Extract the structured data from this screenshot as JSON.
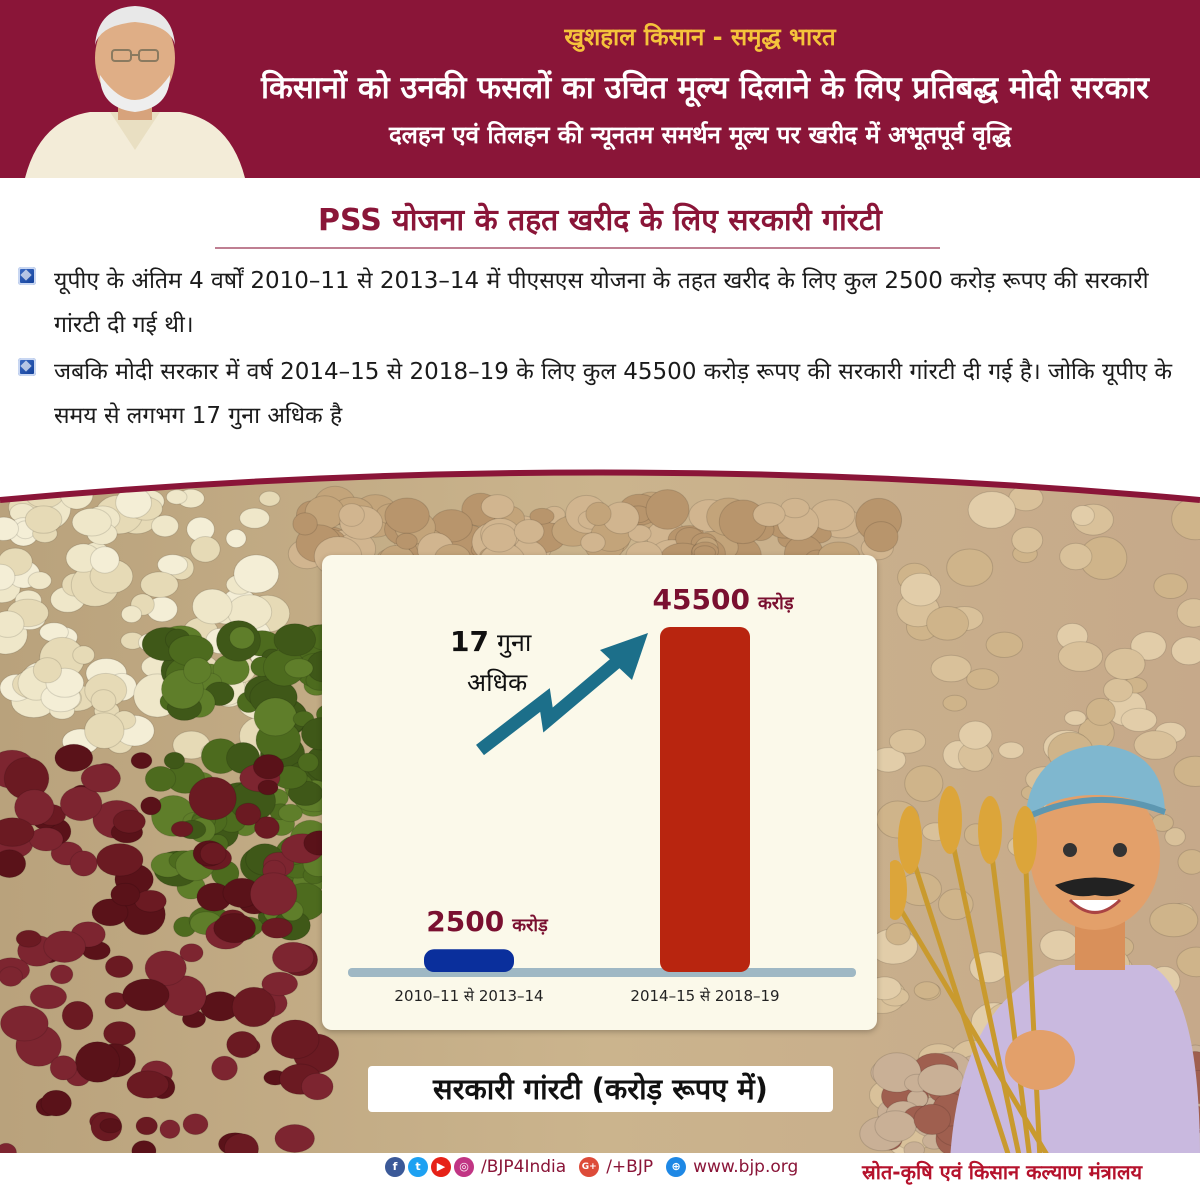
{
  "header": {
    "tagline": "खुशहाल किसान - समृद्ध भारत",
    "headline": "किसानों को उनकी फसलों का उचित मूल्य दिलाने के लिए प्रतिबद्ध मोदी सरकार",
    "subheadline": "दलहन एवं तिलहन की न्यूनतम समर्थन मूल्य पर खरीद में अभूतपूर्व वृद्धि"
  },
  "section": {
    "title": "PSS योजना के तहत खरीद के लिए सरकारी गांरटी",
    "bullets": [
      "यूपीए के अंतिम 4 वर्षों 2010–11 से 2013–14 में पीएसएस योजना के तहत खरीद के लिए कुल 2500 करोड़ रूपए की सरकारी गांरटी दी गई थी।",
      "जबकि मोदी सरकार में वर्ष 2014–15 से 2018–19 के लिए कुल 45500 करोड़ रूपए की सरकारी गांरटी दी गई है। जोकि यूपीए के समय से लगभग 17 गुना अधिक है"
    ]
  },
  "chart_data": {
    "type": "bar",
    "categories": [
      "2010–11 से 2013–14",
      "2014–15 से 2018–19"
    ],
    "values": [
      2500,
      45500
    ],
    "value_labels": [
      "2500",
      "45500"
    ],
    "unit_label": "करोड़",
    "bar_colors": [
      "#0a2f9c",
      "#b8250f"
    ],
    "title": "सरकारी गांरटी (करोड़ रूपए में)",
    "annotation": {
      "number": "17",
      "line1_unit": "गुना",
      "line2": "अधिक"
    },
    "arrow_color": "#1c6f8a",
    "axis_color": "#9fb8c4",
    "ylim": [
      0,
      45500
    ]
  },
  "footer": {
    "handle": "/BJP4India",
    "gplus": "/+BJP",
    "website": "www.bjp.org",
    "source": "स्रोत-कृषि एवं किसान कल्याण मंत्रालय"
  },
  "colors": {
    "header_bg": "#8a1538",
    "tagline": "#f5c33b",
    "accent": "#8a1538"
  }
}
